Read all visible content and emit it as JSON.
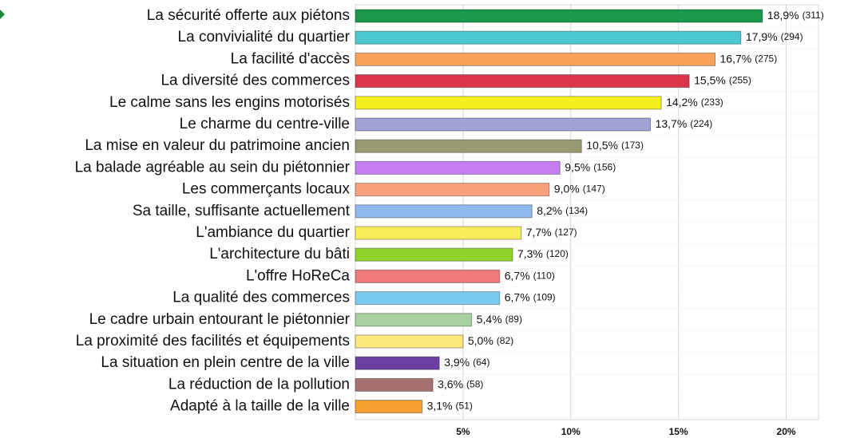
{
  "chart_data": {
    "type": "bar",
    "orientation": "horizontal",
    "categories": [
      "La sécurité offerte aux piétons",
      "La convivialité du quartier",
      "La facilité d'accès",
      "La diversité des commerces",
      "Le calme sans les engins motorisés",
      "Le charme du centre-ville",
      "La mise en valeur du patrimoine ancien",
      "La balade agréable au sein du piétonnier",
      "Les commerçants locaux",
      "Sa taille, suffisante actuellement",
      "L'ambiance du quartier",
      "L'architecture du bâti",
      "L'offre HoReCa",
      "La qualité des commerces",
      "Le cadre urbain entourant le piétonnier",
      "La proximité des facilités et équipements",
      "La situation en plein centre de la ville",
      "La réduction de la pollution",
      "Adapté à la taille de la ville"
    ],
    "values": [
      18.9,
      17.9,
      16.7,
      15.5,
      14.2,
      13.7,
      10.5,
      9.5,
      9.0,
      8.2,
      7.7,
      7.3,
      6.7,
      6.7,
      5.4,
      5.0,
      3.9,
      3.6,
      3.1
    ],
    "value_labels": [
      "18,9%",
      "17,9%",
      "16,7%",
      "15,5%",
      "14,2%",
      "13,7%",
      "10,5%",
      "9,5%",
      "9,0%",
      "8,2%",
      "7,7%",
      "7,3%",
      "6,7%",
      "6,7%",
      "5,4%",
      "5,0%",
      "3,9%",
      "3,6%",
      "3,1%"
    ],
    "count_labels": [
      "(311)",
      "(294)",
      "(275)",
      "(255)",
      "(233)",
      "(224)",
      "(173)",
      "(156)",
      "(147)",
      "(134)",
      "(127)",
      "(120)",
      "(110)",
      "(109)",
      "(89)",
      "(82)",
      "(64)",
      "(58)",
      "(51)"
    ],
    "colors": [
      "#1a9a4a",
      "#4cc9d0",
      "#f9a35a",
      "#d9364b",
      "#f5ef1f",
      "#a3a3d6",
      "#9a9a70",
      "#c57ef0",
      "#f9a07c",
      "#8fb8ef",
      "#f7ee5a",
      "#8fd22c",
      "#f07a7a",
      "#7ccaf0",
      "#a8d0a0",
      "#fbe77a",
      "#6a3fa0",
      "#a87070",
      "#f5a030"
    ],
    "xlim": [
      0,
      21.5
    ],
    "xticks": [
      {
        "value": 5,
        "label": "5%"
      },
      {
        "value": 10,
        "label": "10%"
      },
      {
        "value": 15,
        "label": "15%"
      },
      {
        "value": 20,
        "label": "20%"
      }
    ],
    "grid": true
  }
}
